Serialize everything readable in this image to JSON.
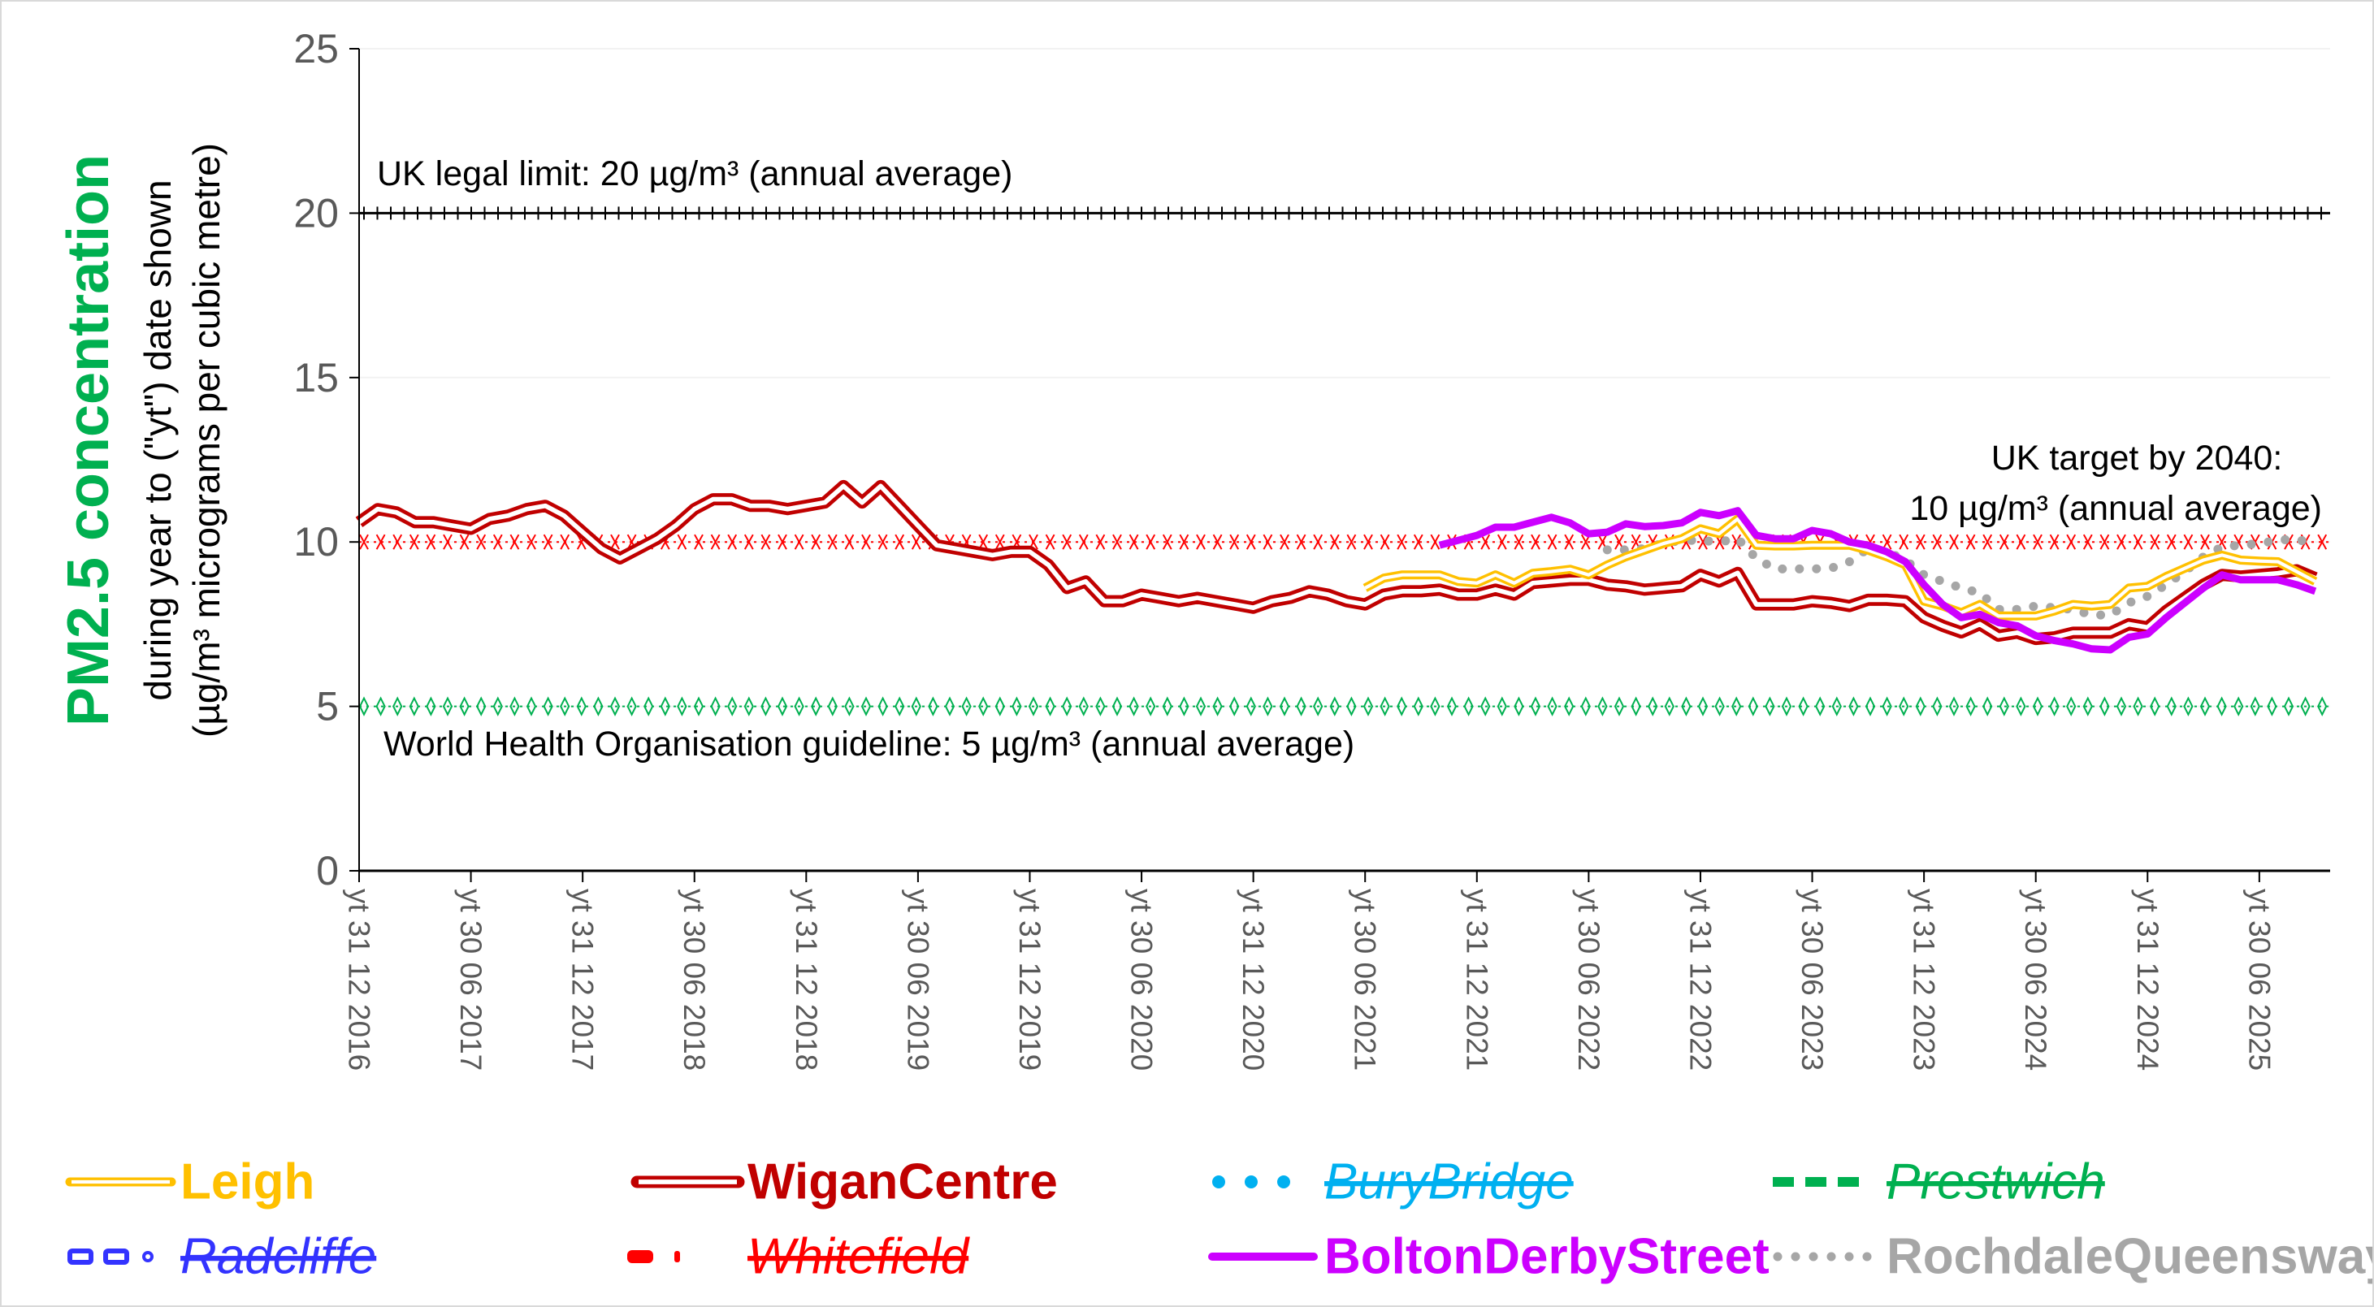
{
  "chart_data": {
    "type": "line",
    "title": "PM2.5 concentration",
    "ylabel_lines": [
      "during year to (\"yt\") date shown",
      "(µg/m³ micrograms per cubic metre)"
    ],
    "ylim": [
      0,
      25
    ],
    "yticks": [
      "0",
      "5",
      "10",
      "15",
      "20",
      "25"
    ],
    "ytick_values": [
      0,
      5,
      10,
      15,
      20,
      25
    ],
    "x_note": "monthly points, index 0 = yt 31 12 2016",
    "xtick_labels": [
      "yt 31 12 2016",
      "yt 30 06 2017",
      "yt 31 12 2017",
      "yt 30 06 2018",
      "yt 31 12 2018",
      "yt 30 06 2019",
      "yt 31 12 2019",
      "yt 30 06 2020",
      "yt 31 12 2020",
      "yt 30 06 2021",
      "yt 31 12 2021",
      "yt 30 06 2022",
      "yt 31 12 2022",
      "yt 30 06 2023",
      "yt 31 12 2023",
      "yt 30 06 2024",
      "yt 31 12 2024",
      "yt 30 06 2025"
    ],
    "months_per_label": 6,
    "n_points": 106,
    "reference_lines": [
      {
        "name": "UK legal limit",
        "value": 20,
        "color": "#000000",
        "marker": "plus",
        "label": "UK legal limit:  20 µg/m³ (annual average)"
      },
      {
        "name": "UK target by 2040",
        "value": 10,
        "color": "#FF0000",
        "marker": "x",
        "label_lines": [
          "UK target by 2040:",
          "10 µg/m³ (annual average)"
        ]
      },
      {
        "name": "WHO guideline",
        "value": 5,
        "color": "#00B050",
        "marker": "diamond",
        "label": "World Health Organisation guideline:  5 µg/m³ (annual average)"
      }
    ],
    "series": [
      {
        "name": "Leigh",
        "color": "#FFC000",
        "style": "double",
        "start": 54,
        "values": [
          8.6,
          8.9,
          9.0,
          9.0,
          9.0,
          8.8,
          8.75,
          9.0,
          8.75,
          9.05,
          9.1,
          9.17,
          9.0,
          9.3,
          9.55,
          9.75,
          9.95,
          10.1,
          10.4,
          10.25,
          10.7,
          9.9,
          9.88,
          9.88,
          9.9,
          9.9,
          9.9,
          9.75,
          9.55,
          9.3,
          8.2,
          8.05,
          7.85,
          8.1,
          7.75,
          7.75,
          7.75,
          7.9,
          8.1,
          8.05,
          8.1,
          8.6,
          8.65,
          8.95,
          9.2,
          9.45,
          9.6,
          9.45,
          9.42,
          9.4,
          9.1,
          8.8
        ]
      },
      {
        "name": "WiganCentre",
        "color": "#C00000",
        "style": "double",
        "start": 0,
        "values": [
          10.6,
          11.0,
          10.9,
          10.6,
          10.6,
          10.5,
          10.4,
          10.7,
          10.8,
          11.0,
          11.1,
          10.8,
          10.3,
          9.8,
          9.5,
          9.8,
          10.1,
          10.5,
          11.0,
          11.3,
          11.3,
          11.1,
          11.1,
          11.0,
          11.1,
          11.2,
          11.7,
          11.2,
          11.7,
          11.1,
          10.5,
          9.9,
          9.8,
          9.7,
          9.6,
          9.7,
          9.7,
          9.3,
          8.6,
          8.8,
          8.2,
          8.2,
          8.4,
          8.3,
          8.2,
          8.3,
          8.2,
          8.1,
          8.0,
          8.2,
          8.3,
          8.5,
          8.4,
          8.2,
          8.1,
          8.4,
          8.5,
          8.5,
          8.55,
          8.4,
          8.4,
          8.55,
          8.4,
          8.75,
          8.8,
          8.85,
          8.85,
          8.7,
          8.65,
          8.55,
          8.6,
          8.65,
          9.0,
          8.8,
          9.06,
          8.1,
          8.1,
          8.1,
          8.2,
          8.15,
          8.05,
          8.24,
          8.24,
          8.2,
          7.7,
          7.45,
          7.25,
          7.5,
          7.15,
          7.24,
          7.05,
          7.1,
          7.24,
          7.24,
          7.24,
          7.5,
          7.4,
          7.9,
          8.3,
          8.7,
          9.0,
          8.95,
          9.0,
          9.05,
          9.14,
          8.9
        ]
      },
      {
        "name": "BuryBridge",
        "color": "#00B0F0",
        "style": "dots",
        "struck": true,
        "values": []
      },
      {
        "name": "Prestwich",
        "color": "#00B050",
        "style": "dash",
        "struck": true,
        "values": []
      },
      {
        "name": "Radcliffe",
        "color": "#3333FF",
        "style": "dash-dot",
        "struck": true,
        "values": []
      },
      {
        "name": "Whitefield",
        "color": "#FF0000",
        "style": "long-dash-dot",
        "struck": true,
        "values": []
      },
      {
        "name": "BoltonDerbyStreet",
        "color": "#CC00FF",
        "style": "solid",
        "start": 58,
        "values": [
          9.9,
          10.05,
          10.2,
          10.45,
          10.45,
          10.6,
          10.75,
          10.58,
          10.25,
          10.3,
          10.55,
          10.47,
          10.5,
          10.58,
          10.9,
          10.8,
          10.95,
          10.2,
          10.1,
          10.1,
          10.35,
          10.25,
          10.0,
          9.9,
          9.7,
          9.4,
          8.7,
          8.1,
          7.7,
          7.8,
          7.55,
          7.45,
          7.15,
          7.0,
          6.9,
          6.75,
          6.72,
          7.1,
          7.2,
          7.7,
          8.15,
          8.6,
          9.0,
          8.85,
          8.85,
          8.85,
          8.7,
          8.5
        ]
      },
      {
        "name": "RochdaleQueensway",
        "color": "#A6A6A6",
        "style": "round-dots",
        "start": 67,
        "values": [
          9.76,
          9.76,
          9.8,
          9.96,
          10.05,
          10.05,
          10.0,
          10.1,
          9.5,
          9.18,
          9.18,
          9.18,
          9.2,
          9.4,
          9.8,
          9.7,
          9.45,
          9.0,
          8.8,
          8.6,
          8.45,
          7.95,
          7.95,
          8.05,
          8.0,
          7.95,
          7.78,
          7.78,
          8.15,
          8.35,
          8.7,
          9.1,
          9.55,
          9.85,
          9.9,
          9.95,
          10.05,
          10.1,
          9.9
        ]
      }
    ],
    "legend": {
      "placement": "bottom",
      "items": [
        "Leigh",
        "WiganCentre",
        "BuryBridge",
        "Prestwich",
        "Radcliffe",
        "Whitefield",
        "BoltonDerbyStreet",
        "RochdaleQueensway"
      ]
    }
  }
}
